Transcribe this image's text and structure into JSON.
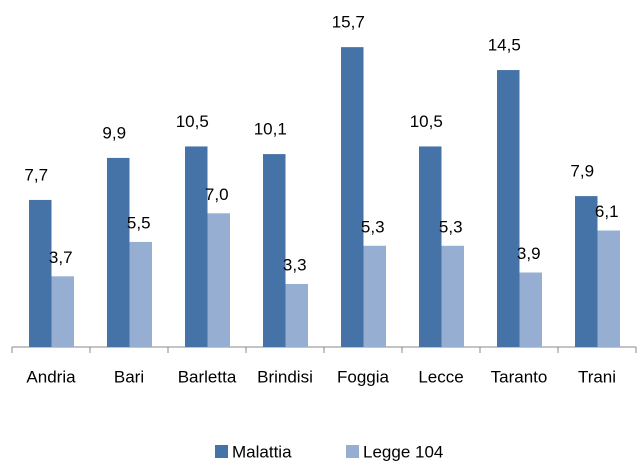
{
  "chart_data": {
    "type": "bar",
    "categories": [
      "Andria",
      "Bari",
      "Barletta",
      "Brindisi",
      "Foggia",
      "Lecce",
      "Taranto",
      "Trani"
    ],
    "series": [
      {
        "name": "Malattia",
        "color": "#4572a7",
        "values": [
          7.7,
          9.9,
          10.5,
          10.1,
          15.7,
          10.5,
          14.5,
          7.9
        ],
        "value_labels": [
          "7,7",
          "9,9",
          "10,5",
          "10,1",
          "15,7",
          "10,5",
          "14,5",
          "7,9"
        ]
      },
      {
        "name": "Legge 104",
        "color": "#97aed3",
        "values": [
          3.7,
          5.5,
          7.0,
          3.3,
          5.3,
          5.3,
          3.9,
          6.1
        ],
        "value_labels": [
          "3,7",
          "5,5",
          "7,0",
          "3,3",
          "5,3",
          "5,3",
          "3,9",
          "6,1"
        ]
      }
    ],
    "legend": "bottom"
  }
}
